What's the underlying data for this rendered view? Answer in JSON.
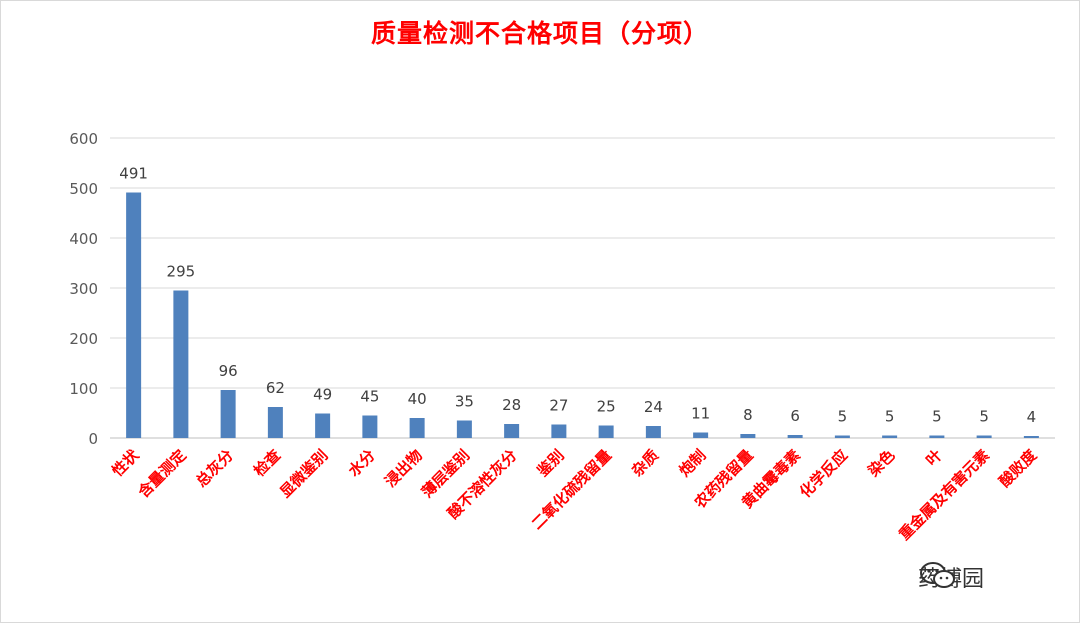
{
  "chart_data": {
    "type": "bar",
    "title": "质量检测不合格项目（分项）",
    "categories": [
      "性状",
      "含量测定",
      "总灰分",
      "检查",
      "显微鉴别",
      "水分",
      "浸出物",
      "薄层鉴别",
      "酸不溶性灰分",
      "鉴别",
      "二氧化硫残留量",
      "杂质",
      "炮制",
      "农药残留量",
      "黄曲霉毒素",
      "化学反应",
      "染色",
      "叶",
      "重金属及有害元素",
      "酸败度"
    ],
    "values": [
      491,
      295,
      96,
      62,
      49,
      45,
      40,
      35,
      28,
      27,
      25,
      24,
      11,
      8,
      6,
      5,
      5,
      5,
      5,
      4
    ],
    "ylim": [
      0,
      600
    ],
    "yticks": [
      0,
      100,
      200,
      300,
      400,
      500,
      600
    ],
    "grid": true,
    "bar_color": "#4f81bd",
    "label_color": "#ff0000",
    "title_color": "#ff0000"
  },
  "watermark": {
    "icon": "wechat-icon",
    "text": "药博园"
  }
}
